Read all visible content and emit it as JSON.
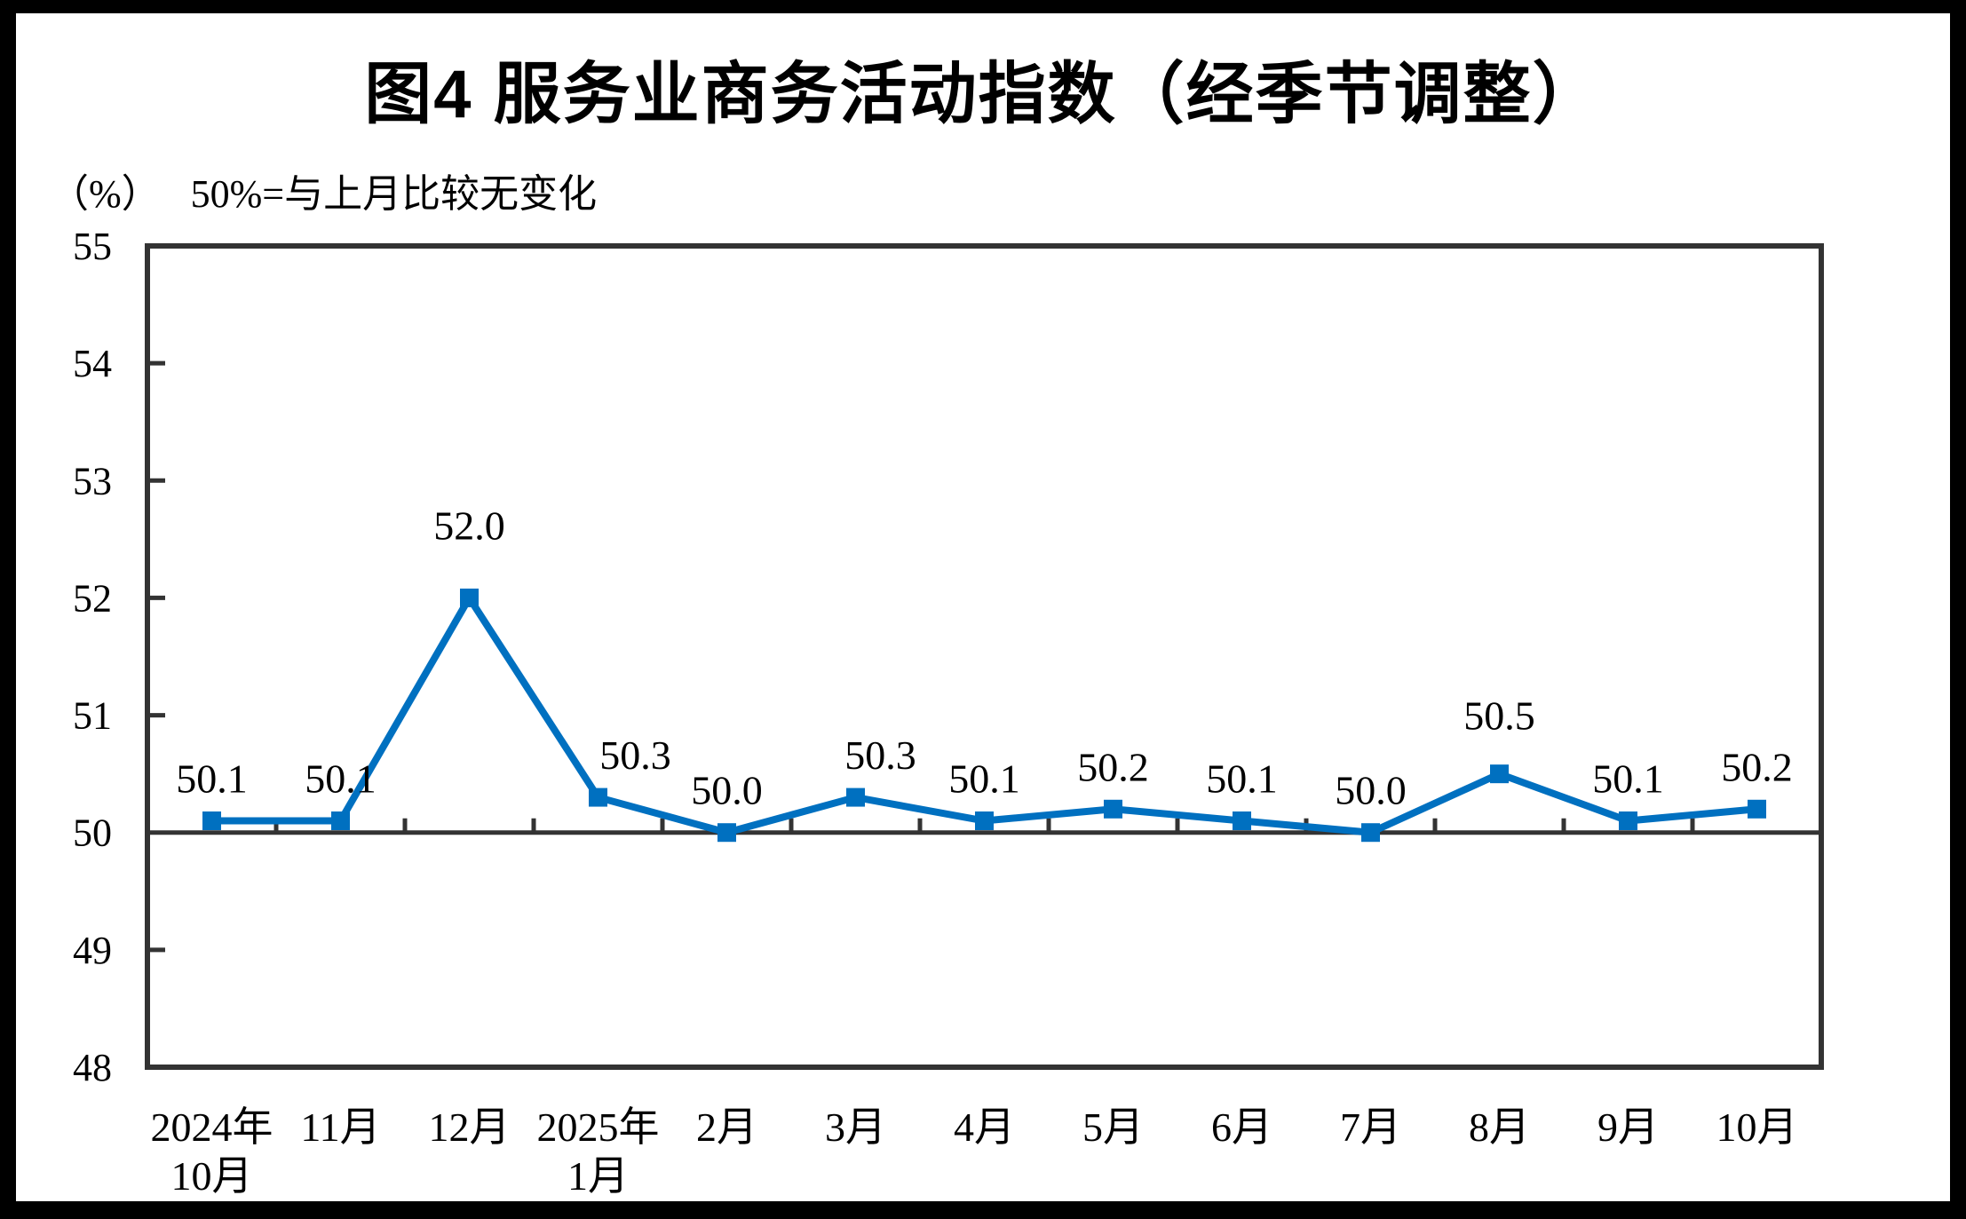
{
  "title": "图4 服务业商务活动指数（经季节调整）",
  "unit_label": "（%）",
  "subtitle": "50%=与上月比较无变化",
  "chart_data": {
    "type": "line",
    "title": "图4 服务业商务活动指数（经季节调整）",
    "subtitle": "50%=与上月比较无变化",
    "ylabel": "（%）",
    "xlabel": "",
    "categories": [
      [
        "2024年",
        "10月"
      ],
      [
        "11月"
      ],
      [
        "12月"
      ],
      [
        "2025年",
        "1月"
      ],
      [
        "2月"
      ],
      [
        "3月"
      ],
      [
        "4月"
      ],
      [
        "5月"
      ],
      [
        "6月"
      ],
      [
        "7月"
      ],
      [
        "8月"
      ],
      [
        "9月"
      ],
      [
        "10月"
      ]
    ],
    "values": [
      50.1,
      50.1,
      52.0,
      50.3,
      50.0,
      50.3,
      50.1,
      50.2,
      50.1,
      50.0,
      50.5,
      50.1,
      50.2
    ],
    "data_labels": [
      "50.1",
      "50.1",
      "52.0",
      "50.3",
      "50.0",
      "50.3",
      "50.1",
      "50.2",
      "50.1",
      "50.0",
      "50.5",
      "50.1",
      "50.2"
    ],
    "ylim": [
      48,
      55
    ],
    "y_ticks": [
      48,
      49,
      50,
      51,
      52,
      53,
      54,
      55
    ],
    "reference_line": 50,
    "grid": false,
    "legend_position": "none",
    "line_color": "#0070C0",
    "marker": "square",
    "axis_color": "#333333",
    "text_color": "#000000"
  }
}
